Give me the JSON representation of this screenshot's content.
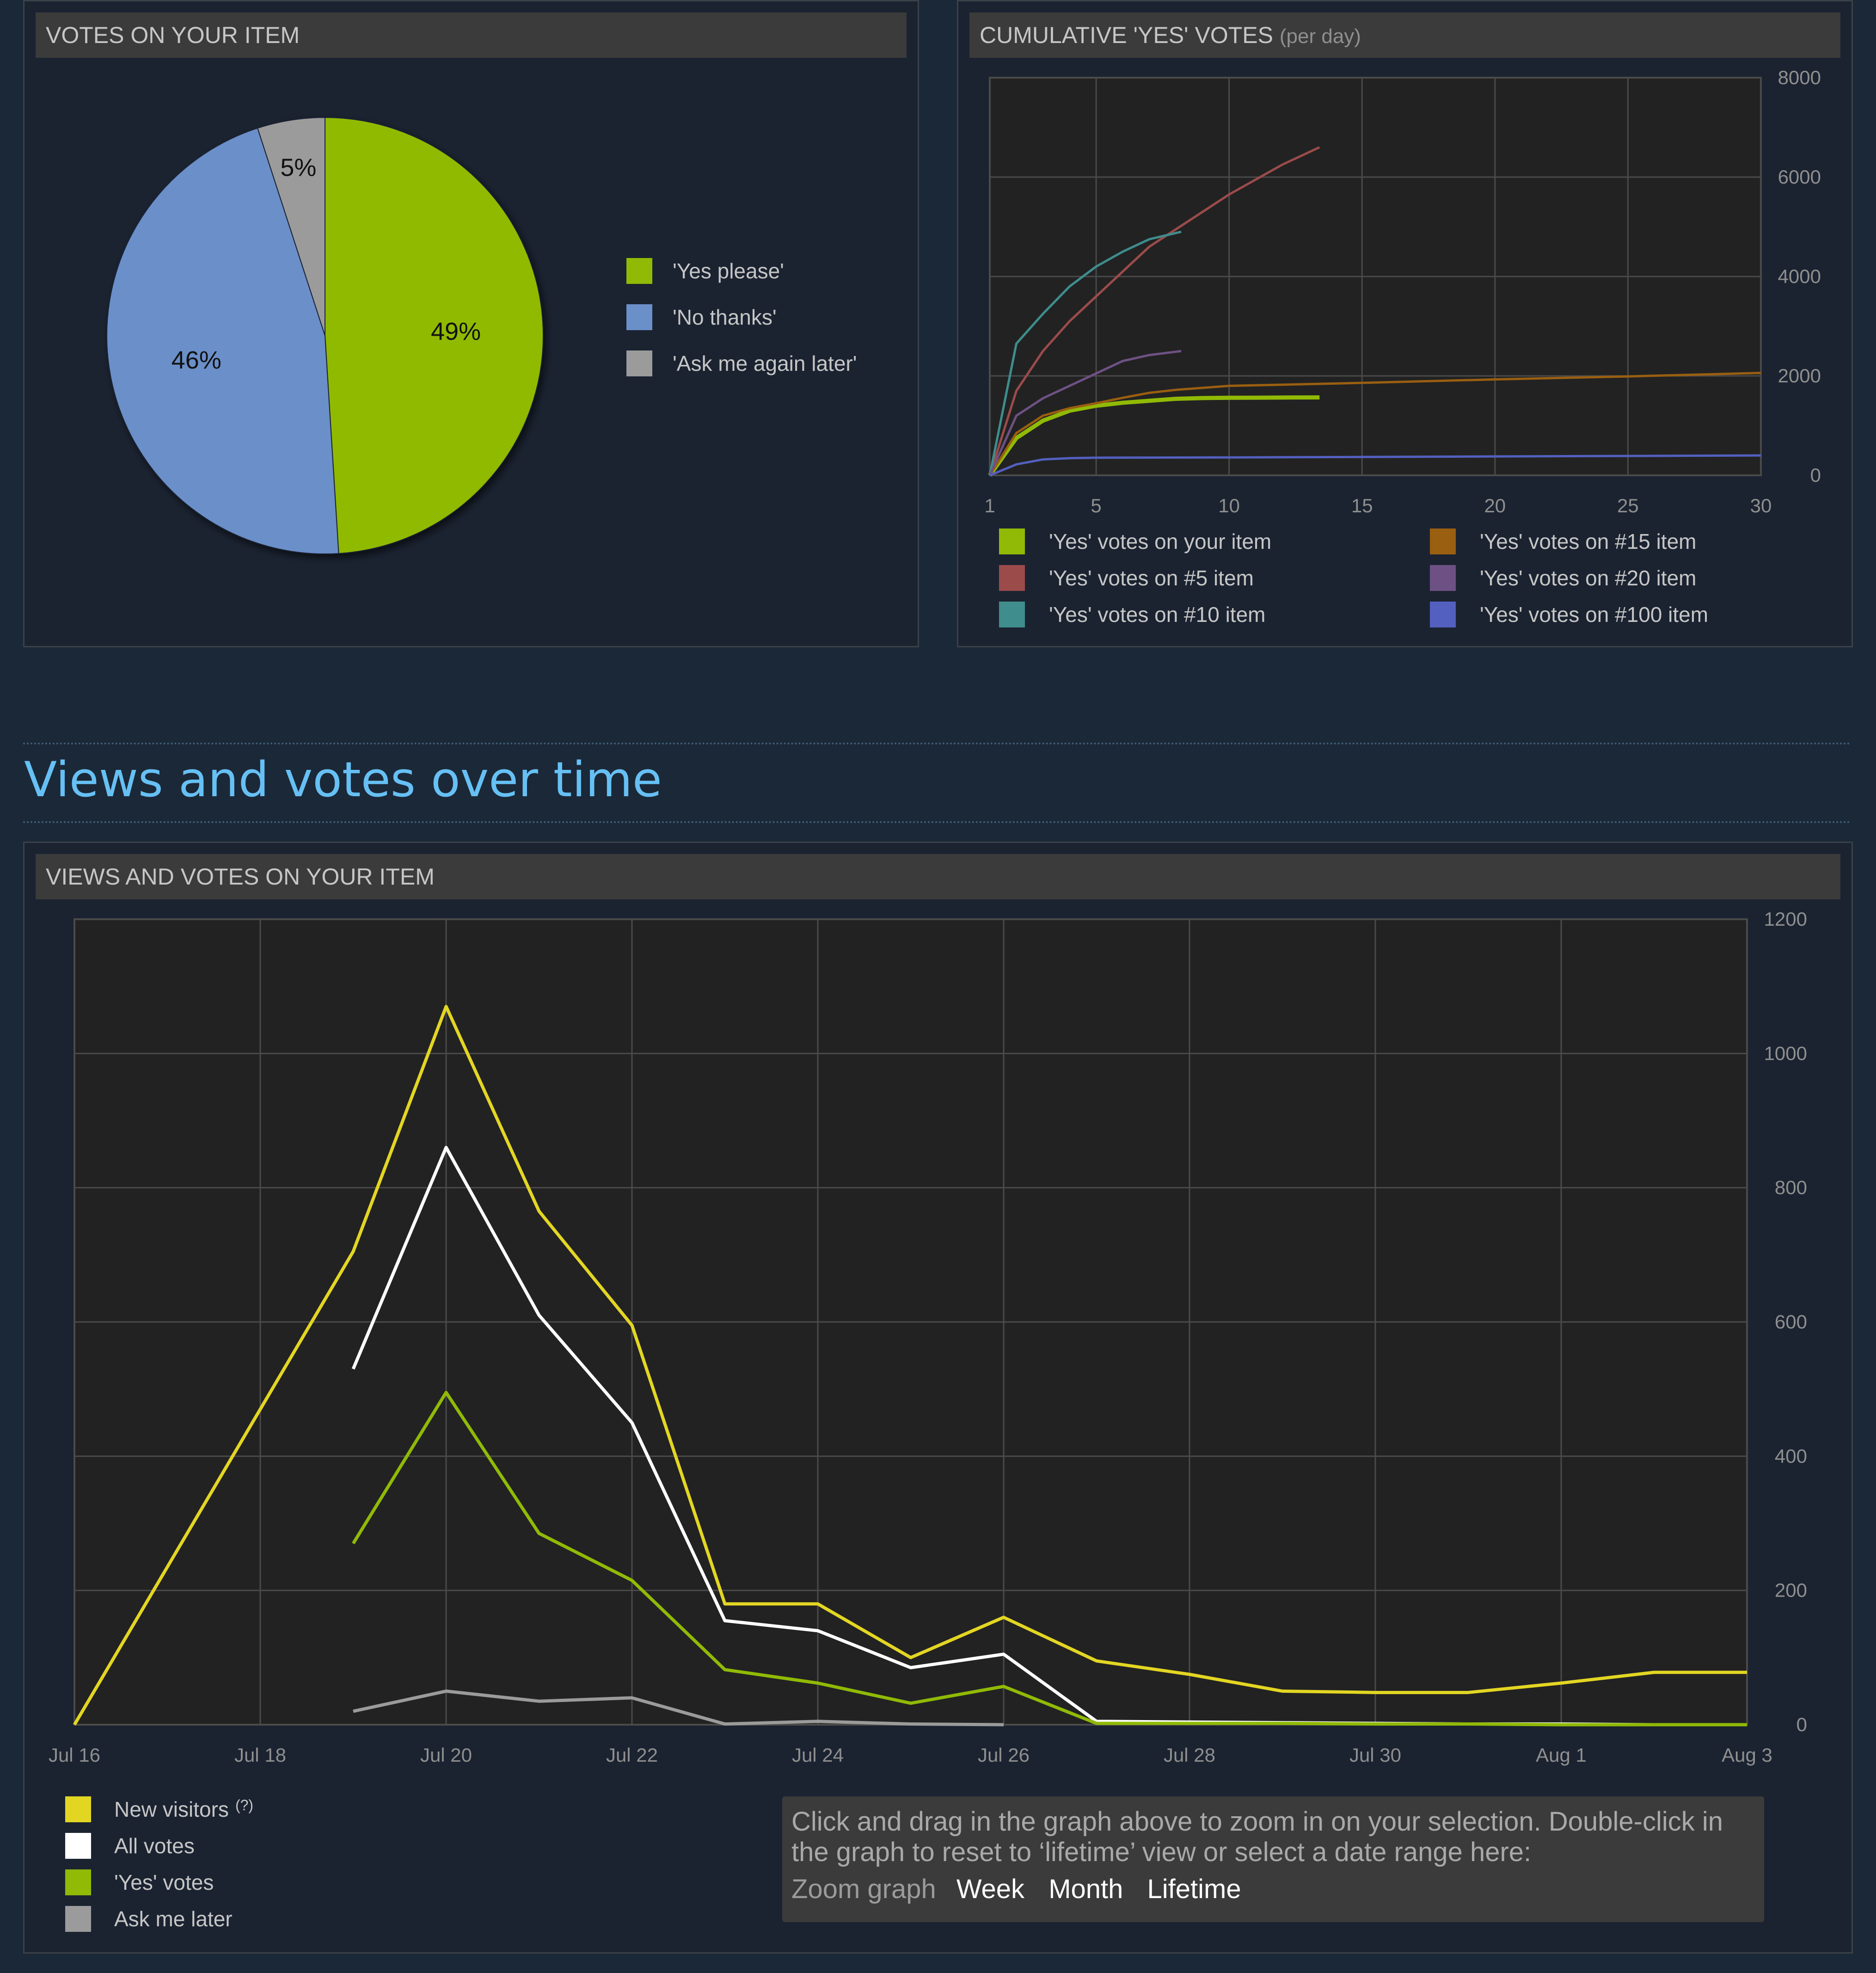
{
  "votes_panel": {
    "title": "VOTES ON YOUR ITEM"
  },
  "cumulative_panel": {
    "title": "CUMULATIVE 'YES' VOTES",
    "subtitle": "(per day)"
  },
  "section": {
    "title": "Views and votes over time"
  },
  "views_panel": {
    "title": "VIEWS AND VOTES ON YOUR ITEM",
    "legend_help": "(?)"
  },
  "zoom": {
    "instructions": "Click and drag in the graph above to zoom in on your selection. Double-click in the graph to reset to ‘lifetime’ view or select a date range here:",
    "label": "Zoom graph",
    "week": "Week",
    "month": "Month",
    "lifetime": "Lifetime"
  },
  "colors": {
    "yes": "#90ba06",
    "no": "#6b8fc9",
    "later": "#9b9b9b",
    "new_visitors": "#e3d623",
    "all_votes": "#ffffff",
    "item5": "#9c4b4b",
    "item10": "#3f8d8d",
    "item15": "#9a5f10",
    "item20": "#6e5184",
    "item100": "#5360c0"
  },
  "chart_data": [
    {
      "type": "pie",
      "title": "VOTES ON YOUR ITEM",
      "labels": [
        "'Yes please'",
        "'No thanks'",
        "'Ask me again later'"
      ],
      "values": [
        49,
        46,
        5
      ],
      "value_labels": [
        "49%",
        "46%",
        "5%"
      ],
      "colors": [
        "#90ba06",
        "#6b8fc9",
        "#9b9b9b"
      ],
      "legend": "right"
    },
    {
      "type": "line",
      "title": "CUMULATIVE 'YES' VOTES (per day)",
      "x_ticks": [
        1,
        5,
        10,
        15,
        20,
        25,
        30
      ],
      "y_ticks": [
        0,
        2000,
        4000,
        6000,
        8000
      ],
      "xlim": [
        1,
        30
      ],
      "ylim": [
        0,
        8000
      ],
      "y_axis_side": "right",
      "grid": true,
      "legend": "bottom",
      "series": [
        {
          "name": "'Yes' votes on your item",
          "color": "#90ba06",
          "x": [
            1,
            2,
            3,
            4,
            5,
            6,
            7,
            8,
            9,
            10,
            11,
            12,
            13.4
          ],
          "y": [
            0,
            750,
            1100,
            1300,
            1400,
            1460,
            1500,
            1540,
            1555,
            1560,
            1562,
            1565,
            1568
          ]
        },
        {
          "name": "'Yes' votes on #5 item",
          "color": "#9c4b4b",
          "x": [
            1,
            2,
            3,
            4,
            5,
            6,
            7,
            8,
            9,
            10,
            11,
            12,
            13.4
          ],
          "y": [
            0,
            1700,
            2500,
            3100,
            3600,
            4100,
            4600,
            4950,
            5300,
            5650,
            5950,
            6250,
            6600
          ]
        },
        {
          "name": "'Yes' votes on #10 item",
          "color": "#3f8d8d",
          "x": [
            1,
            2,
            3,
            4,
            5,
            6,
            7,
            8.2
          ],
          "y": [
            0,
            2650,
            3250,
            3800,
            4200,
            4500,
            4750,
            4900
          ]
        },
        {
          "name": "'Yes' votes on #15 item",
          "color": "#9a5f10",
          "x": [
            1,
            2,
            3,
            4,
            5,
            6,
            7,
            8,
            10,
            15,
            20,
            25,
            30
          ],
          "y": [
            0,
            850,
            1200,
            1350,
            1450,
            1560,
            1660,
            1720,
            1800,
            1860,
            1930,
            1990,
            2060
          ]
        },
        {
          "name": "'Yes' votes on #20 item",
          "color": "#6e5184",
          "x": [
            1,
            2,
            3,
            4,
            5,
            6,
            7,
            8.2
          ],
          "y": [
            0,
            1200,
            1550,
            1800,
            2050,
            2300,
            2420,
            2500
          ]
        },
        {
          "name": "'Yes' votes on #100 item",
          "color": "#5360c0",
          "x": [
            1,
            2,
            3,
            4,
            5,
            10,
            15,
            20,
            25,
            30
          ],
          "y": [
            0,
            220,
            320,
            345,
            355,
            360,
            370,
            380,
            390,
            400
          ]
        }
      ]
    },
    {
      "type": "line",
      "title": "VIEWS AND VOTES ON YOUR ITEM",
      "x_tick_labels": [
        "Jul 16",
        "Jul 18",
        "Jul 20",
        "Jul 22",
        "Jul 24",
        "Jul 26",
        "Jul 28",
        "Jul 30",
        "Aug 1",
        "Aug 3"
      ],
      "x_tick_days": [
        0,
        2,
        4,
        6,
        8,
        10,
        12,
        14,
        16,
        18
      ],
      "x_unit": "days since Jul 16",
      "y_ticks": [
        0,
        200,
        400,
        600,
        800,
        1000,
        1200
      ],
      "ylim": [
        0,
        1200
      ],
      "xlim": [
        0,
        18
      ],
      "y_axis_side": "right",
      "grid": true,
      "legend": "bottom-left",
      "series": [
        {
          "name": "New visitors",
          "color": "#e3d623",
          "x": [
            0,
            1,
            2,
            3,
            4,
            5,
            6,
            7,
            8,
            9,
            10,
            11,
            12,
            13,
            14,
            15,
            16,
            17,
            18
          ],
          "y": [
            0,
            235,
            470,
            705,
            1070,
            765,
            595,
            180,
            180,
            100,
            160,
            95,
            75,
            50,
            48,
            48,
            62,
            78,
            78
          ]
        },
        {
          "name": "All votes",
          "color": "#ffffff",
          "x": [
            3,
            4,
            5,
            6,
            7,
            8,
            9,
            10,
            11,
            12,
            13,
            14,
            15,
            16,
            17,
            18
          ],
          "y": [
            530,
            860,
            610,
            450,
            155,
            140,
            85,
            105,
            5,
            4,
            3,
            2,
            1,
            1,
            0,
            0
          ]
        },
        {
          "name": "'Yes' votes",
          "color": "#90ba06",
          "x": [
            3,
            4,
            5,
            6,
            7,
            8,
            9,
            10,
            11,
            12,
            13,
            14,
            15,
            16,
            17,
            18
          ],
          "y": [
            270,
            495,
            285,
            215,
            82,
            62,
            32,
            57,
            2,
            2,
            2,
            1,
            1,
            0,
            0,
            0
          ]
        },
        {
          "name": "Ask me later",
          "color": "#9b9b9b",
          "x": [
            3,
            4,
            5,
            6,
            7,
            8,
            9,
            10
          ],
          "y": [
            20,
            50,
            35,
            40,
            1,
            5,
            1,
            0
          ]
        }
      ]
    }
  ]
}
